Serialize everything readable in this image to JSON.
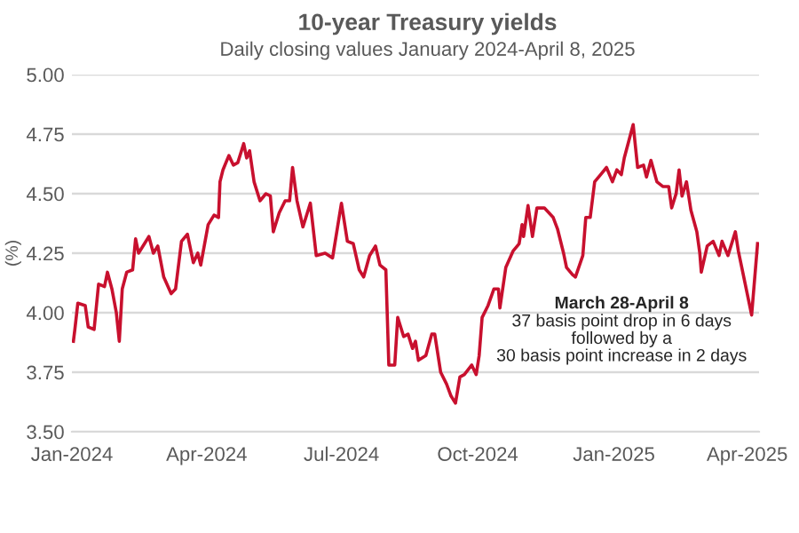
{
  "chart_data": {
    "type": "line",
    "title": "10-year Treasury yields",
    "subtitle": "Daily closing values January 2024-April 8, 2025",
    "ylabel": "(%)",
    "annotations": [
      "March 28-April 8",
      "37 basis point drop in 6 days\nfollowed by a\n30 basis point increase in 2 days"
    ],
    "x": [
      "2024-01-02",
      "2024-01-03",
      "2024-01-05",
      "2024-01-10",
      "2024-01-12",
      "2024-01-16",
      "2024-01-19",
      "2024-01-23",
      "2024-01-25",
      "2024-01-28",
      "2024-01-31",
      "2024-02-02",
      "2024-02-04",
      "2024-02-07",
      "2024-02-11",
      "2024-02-13",
      "2024-02-15",
      "2024-02-22",
      "2024-02-25",
      "2024-02-28",
      "2024-03-03",
      "2024-03-08",
      "2024-03-11",
      "2024-03-15",
      "2024-03-19",
      "2024-03-23",
      "2024-03-26",
      "2024-03-28",
      "2024-04-02",
      "2024-04-06",
      "2024-04-09",
      "2024-04-10",
      "2024-04-12",
      "2024-04-16",
      "2024-04-19",
      "2024-04-22",
      "2024-04-26",
      "2024-04-28",
      "2024-04-30",
      "2024-05-03",
      "2024-05-07",
      "2024-05-11",
      "2024-05-14",
      "2024-05-16",
      "2024-05-20",
      "2024-05-24",
      "2024-05-27",
      "2024-05-29",
      "2024-06-01",
      "2024-06-05",
      "2024-06-10",
      "2024-06-14",
      "2024-06-20",
      "2024-06-25",
      "2024-07-01",
      "2024-07-05",
      "2024-07-09",
      "2024-07-13",
      "2024-07-16",
      "2024-07-20",
      "2024-07-24",
      "2024-07-27",
      "2024-07-31",
      "2024-08-02",
      "2024-08-06",
      "2024-08-08",
      "2024-08-12",
      "2024-08-15",
      "2024-08-18",
      "2024-08-20",
      "2024-08-22",
      "2024-08-27",
      "2024-08-31",
      "2024-09-02",
      "2024-09-06",
      "2024-09-10",
      "2024-09-13",
      "2024-09-16",
      "2024-09-19",
      "2024-09-22",
      "2024-09-27",
      "2024-09-30",
      "2024-10-02",
      "2024-10-04",
      "2024-10-08",
      "2024-10-12",
      "2024-10-15",
      "2024-10-16",
      "2024-10-20",
      "2024-10-25",
      "2024-10-29",
      "2024-10-31",
      "2024-11-01",
      "2024-11-04",
      "2024-11-07",
      "2024-11-10",
      "2024-11-15",
      "2024-11-21",
      "2024-11-24",
      "2024-11-28",
      "2024-11-30",
      "2024-12-04",
      "2024-12-06",
      "2024-12-11",
      "2024-12-13",
      "2024-12-16",
      "2024-12-19",
      "2024-12-23",
      "2024-12-27",
      "2024-12-31",
      "2025-01-03",
      "2025-01-06",
      "2025-01-08",
      "2025-01-11",
      "2025-01-14",
      "2025-01-17",
      "2025-01-21",
      "2025-01-23",
      "2025-01-26",
      "2025-01-30",
      "2025-02-03",
      "2025-02-07",
      "2025-02-09",
      "2025-02-12",
      "2025-02-14",
      "2025-02-16",
      "2025-02-19",
      "2025-02-22",
      "2025-02-26",
      "2025-02-28",
      "2025-03-01",
      "2025-03-05",
      "2025-03-09",
      "2025-03-13",
      "2025-03-15",
      "2025-03-19",
      "2025-03-24",
      "2025-03-26",
      "2025-03-28",
      "2025-04-04",
      "2025-04-08"
    ],
    "series": [
      {
        "color": "#c8102e",
        "values": [
          3.88,
          3.93,
          4.04,
          4.03,
          3.94,
          3.93,
          4.12,
          4.11,
          4.17,
          4.1,
          4.0,
          3.88,
          4.1,
          4.17,
          4.18,
          4.31,
          4.25,
          4.32,
          4.25,
          4.28,
          4.15,
          4.08,
          4.1,
          4.3,
          4.33,
          4.21,
          4.25,
          4.2,
          4.37,
          4.41,
          4.4,
          4.55,
          4.6,
          4.66,
          4.62,
          4.63,
          4.71,
          4.65,
          4.68,
          4.55,
          4.47,
          4.5,
          4.49,
          4.34,
          4.42,
          4.47,
          4.47,
          4.61,
          4.47,
          4.36,
          4.46,
          4.24,
          4.25,
          4.23,
          4.46,
          4.3,
          4.29,
          4.18,
          4.15,
          4.24,
          4.28,
          4.2,
          4.18,
          3.78,
          3.78,
          3.98,
          3.9,
          3.91,
          3.85,
          3.88,
          3.8,
          3.82,
          3.91,
          3.91,
          3.75,
          3.7,
          3.65,
          3.62,
          3.73,
          3.74,
          3.78,
          3.74,
          3.82,
          3.98,
          4.03,
          4.1,
          4.1,
          4.02,
          4.19,
          4.26,
          4.29,
          4.37,
          4.32,
          4.45,
          4.32,
          4.44,
          4.44,
          4.4,
          4.35,
          4.25,
          4.19,
          4.16,
          4.15,
          4.24,
          4.4,
          4.4,
          4.55,
          4.58,
          4.61,
          4.55,
          4.6,
          4.58,
          4.65,
          4.72,
          4.79,
          4.61,
          4.62,
          4.57,
          4.64,
          4.55,
          4.53,
          4.53,
          4.44,
          4.5,
          4.6,
          4.49,
          4.55,
          4.43,
          4.34,
          4.25,
          4.17,
          4.28,
          4.3,
          4.24,
          4.3,
          4.24,
          4.34,
          4.26,
          4.2,
          3.99,
          4.29
        ]
      }
    ],
    "xlim": [
      "2024-01-01",
      "2025-04-09"
    ],
    "xticks": [
      {
        "value": "2024-01-01",
        "label": "Jan-2024"
      },
      {
        "value": "2024-04-01",
        "label": "Apr-2024"
      },
      {
        "value": "2024-07-01",
        "label": "Jul-2024"
      },
      {
        "value": "2024-10-01",
        "label": "Oct-2024"
      },
      {
        "value": "2025-01-01",
        "label": "Jan-2025"
      },
      {
        "value": "2025-04-01",
        "label": "Apr-2025"
      }
    ],
    "ylim": [
      3.5,
      5.0
    ],
    "yticks": [
      {
        "value": 3.5,
        "label": "3.50"
      },
      {
        "value": 3.75,
        "label": "3.75"
      },
      {
        "value": 4.0,
        "label": "4.00"
      },
      {
        "value": 4.25,
        "label": "4.25"
      },
      {
        "value": 4.5,
        "label": "4.50"
      },
      {
        "value": 4.75,
        "label": "4.75"
      },
      {
        "value": 5.0,
        "label": "5.00"
      }
    ],
    "grid": "y",
    "marker": "none",
    "line_style": "solid"
  }
}
